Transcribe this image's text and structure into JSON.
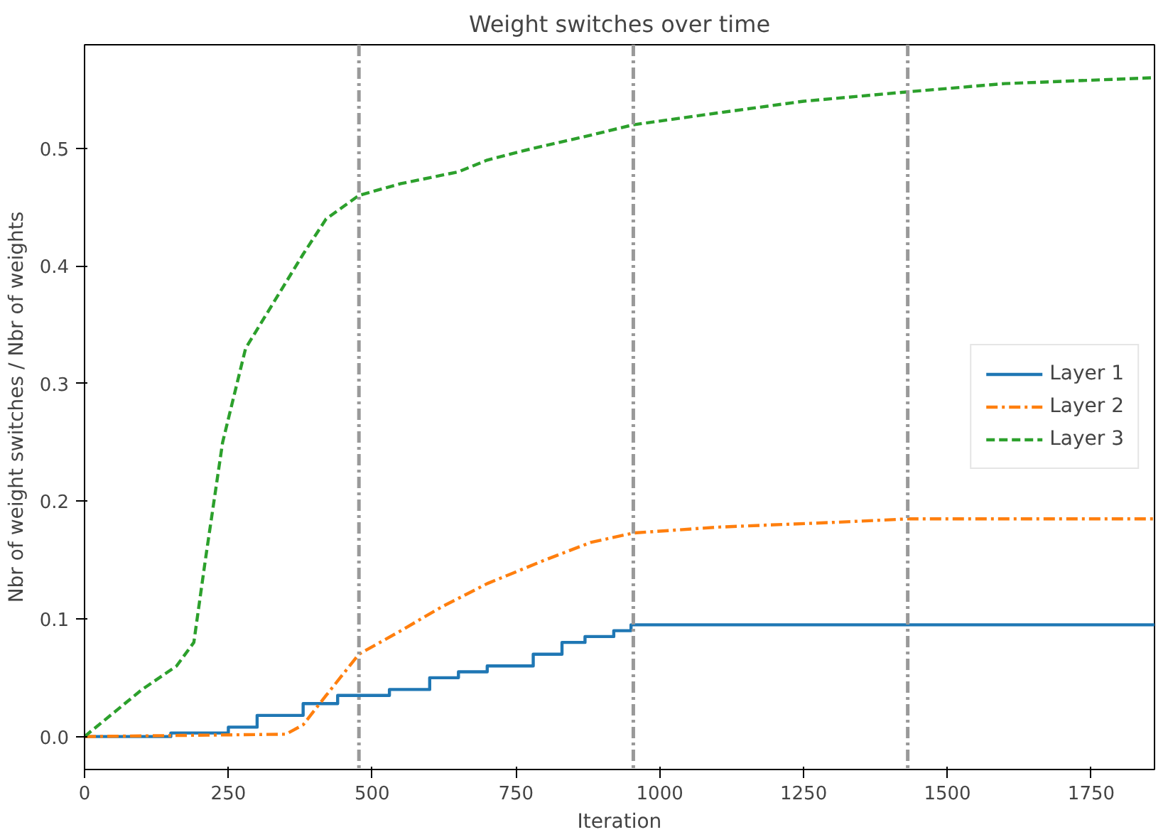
{
  "chart_data": {
    "type": "line",
    "title": "Weight switches over time",
    "xlabel": "Iteration",
    "ylabel": "Nbr of weight switches / Nbr of weights",
    "xlim": [
      0,
      1860
    ],
    "xticks": [
      0,
      250,
      500,
      750,
      1000,
      1250,
      1500,
      1750
    ],
    "ylim": [
      -0.028,
      0.588
    ],
    "yticks": [
      {
        "value": 0,
        "label": "0.0"
      },
      0.1,
      0.2,
      0.3,
      0.4,
      0.5
    ],
    "grid": false,
    "legend": "right",
    "series": [
      {
        "name": "Layer 1",
        "type": "step",
        "color": "#1f77b4",
        "line_style": "solid",
        "x": [
          0,
          150,
          250,
          300,
          380,
          440,
          530,
          600,
          650,
          700,
          780,
          830,
          870,
          920,
          950,
          1860
        ],
        "values": [
          0,
          0.003,
          0.008,
          0.018,
          0.028,
          0.035,
          0.04,
          0.05,
          0.055,
          0.06,
          0.07,
          0.08,
          0.085,
          0.09,
          0.095,
          0.095
        ]
      },
      {
        "name": "Layer 2",
        "color": "#ff7f0e",
        "line_style": "dashdot",
        "x": [
          0,
          350,
          380,
          420,
          477,
          550,
          620,
          700,
          800,
          880,
          954,
          1100,
          1300,
          1431,
          1860
        ],
        "values": [
          0,
          0.002,
          0.01,
          0.035,
          0.07,
          0.09,
          0.11,
          0.13,
          0.15,
          0.165,
          0.173,
          0.178,
          0.182,
          0.185,
          0.185
        ]
      },
      {
        "name": "Layer 3",
        "color": "#2ca02c",
        "line_style": "dashed",
        "x": [
          0,
          50,
          100,
          160,
          190,
          210,
          240,
          280,
          330,
          380,
          420,
          477,
          550,
          650,
          700,
          780,
          870,
          954,
          1100,
          1250,
          1431,
          1600,
          1860
        ],
        "values": [
          0,
          0.02,
          0.04,
          0.06,
          0.08,
          0.15,
          0.25,
          0.33,
          0.37,
          0.41,
          0.44,
          0.46,
          0.47,
          0.48,
          0.49,
          0.5,
          0.51,
          0.52,
          0.53,
          0.54,
          0.548,
          0.555,
          0.56
        ]
      }
    ],
    "ref_lines": [
      {
        "axis": "x",
        "value": 477,
        "color": "#999999",
        "line_style": "dashdot"
      },
      {
        "axis": "x",
        "value": 954,
        "color": "#999999",
        "line_style": "dashdot"
      },
      {
        "axis": "x",
        "value": 1431,
        "color": "#999999",
        "line_style": "dashdot"
      }
    ]
  }
}
